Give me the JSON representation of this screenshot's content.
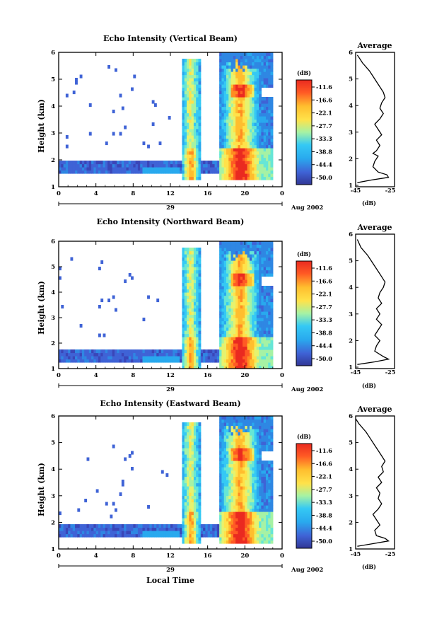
{
  "colors": {
    "scale": [
      "#313695",
      "#3a46b8",
      "#3f63d6",
      "#2f87e3",
      "#29a9ee",
      "#35c9f4",
      "#66e6d6",
      "#a6f2a4",
      "#e6f26e",
      "#ffe24a",
      "#ffbe2e",
      "#ff8c22",
      "#ff5a24",
      "#ea2a20"
    ]
  },
  "units": {
    "db": "(dB)"
  },
  "date": {
    "day": "29",
    "month_year": "Aug 2002"
  },
  "xlabel": "Local Time",
  "chart_data": [
    {
      "type": "heatmap",
      "title": "Echo Intensity (Vertical Beam)",
      "ylabel": "Height (km)",
      "ylim": [
        1,
        6
      ],
      "yticks": [
        "1",
        "2",
        "3",
        "4",
        "5",
        "6"
      ],
      "xlim": [
        0,
        24
      ],
      "xticks": [
        "0",
        "4",
        "8",
        "12",
        "16",
        "20",
        "0"
      ],
      "colorbar": {
        "label": "(dB)",
        "ticks": [
          "-11.6",
          "-16.6",
          "-22.1",
          "-27.7",
          "-33.3",
          "-38.8",
          "-44.4",
          "-50.0"
        ]
      },
      "avg": {
        "title": "Average",
        "xlabel": "(dB)",
        "xticks": [
          "-45",
          "-25"
        ],
        "xlim": [
          -45,
          -25
        ],
        "ylim": [
          1,
          6
        ],
        "heights": [
          1.1,
          1.2,
          1.3,
          1.4,
          1.5,
          1.7,
          1.9,
          2.1,
          2.2,
          2.3,
          2.5,
          2.7,
          2.9,
          3.1,
          3.3,
          3.5,
          3.7,
          3.9,
          4.1,
          4.3,
          4.5,
          4.7,
          5.0,
          5.3,
          5.6,
          5.9
        ],
        "values": [
          -44,
          -36,
          -26,
          -27,
          -32,
          -35,
          -34,
          -32,
          -35,
          -33,
          -31,
          -33,
          -30,
          -32,
          -34,
          -31,
          -29,
          -31,
          -30,
          -28,
          -29,
          -31,
          -34,
          -37,
          -41,
          -44
        ]
      }
    },
    {
      "type": "heatmap",
      "title": "Echo Intensity (Northward Beam)",
      "ylabel": "Height (km)",
      "ylim": [
        1,
        6
      ],
      "yticks": [
        "1",
        "2",
        "3",
        "4",
        "5",
        "6"
      ],
      "xlim": [
        0,
        24
      ],
      "xticks": [
        "0",
        "4",
        "8",
        "12",
        "16",
        "20",
        "0"
      ],
      "colorbar": {
        "label": "(dB)",
        "ticks": [
          "-11.6",
          "-16.6",
          "-22.1",
          "-27.7",
          "-33.3",
          "-38.8",
          "-44.4",
          "-50.0"
        ]
      },
      "avg": {
        "title": "Average",
        "xlabel": "(dB)",
        "xticks": [
          "-45",
          "-25"
        ],
        "xlim": [
          -45,
          -25
        ],
        "ylim": [
          1,
          6
        ],
        "heights": [
          1.1,
          1.2,
          1.3,
          1.4,
          1.6,
          1.8,
          2.0,
          2.2,
          2.4,
          2.6,
          2.8,
          3.0,
          3.2,
          3.4,
          3.6,
          3.8,
          4.0,
          4.2,
          4.4,
          4.6,
          4.9,
          5.2,
          5.5,
          5.8
        ],
        "values": [
          -44,
          -34,
          -26,
          -29,
          -34,
          -33,
          -31,
          -34,
          -32,
          -30,
          -33,
          -31,
          -33,
          -30,
          -32,
          -31,
          -29,
          -28,
          -30,
          -32,
          -35,
          -38,
          -42,
          -44
        ]
      }
    },
    {
      "type": "heatmap",
      "title": "Echo Intensity (Eastward Beam)",
      "ylabel": "Height (km)",
      "ylim": [
        1,
        6
      ],
      "yticks": [
        "1",
        "2",
        "3",
        "4",
        "5",
        "6"
      ],
      "xlim": [
        0,
        24
      ],
      "xticks": [
        "0",
        "4",
        "8",
        "12",
        "16",
        "20",
        "0"
      ],
      "colorbar": {
        "label": "(dB)",
        "ticks": [
          "-11.6",
          "-16.6",
          "-22.1",
          "-27.7",
          "-33.3",
          "-38.8",
          "-44.4",
          "-50.0"
        ]
      },
      "avg": {
        "title": "Average",
        "xlabel": "(dB)",
        "xticks": [
          "-45",
          "-25"
        ],
        "xlim": [
          -45,
          -25
        ],
        "ylim": [
          1,
          6
        ],
        "heights": [
          1.1,
          1.2,
          1.3,
          1.4,
          1.5,
          1.7,
          1.9,
          2.1,
          2.3,
          2.5,
          2.7,
          2.9,
          3.1,
          3.3,
          3.5,
          3.7,
          3.9,
          4.1,
          4.3,
          4.5,
          4.8,
          5.1,
          5.4,
          5.7,
          5.9
        ],
        "values": [
          -44,
          -35,
          -26,
          -28,
          -33,
          -34,
          -31,
          -33,
          -35,
          -32,
          -30,
          -32,
          -31,
          -33,
          -30,
          -32,
          -29,
          -30,
          -28,
          -30,
          -33,
          -36,
          -39,
          -43,
          -45
        ]
      }
    }
  ]
}
